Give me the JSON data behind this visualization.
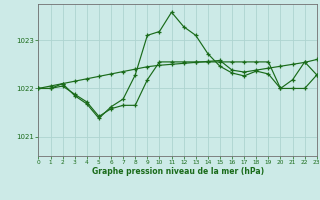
{
  "title": "Graphe pression niveau de la mer (hPa)",
  "bg_color": "#cceae7",
  "grid_color": "#aed4d0",
  "line_color": "#1a6b1a",
  "xlim": [
    0,
    23
  ],
  "ylim": [
    1020.6,
    1023.75
  ],
  "yticks": [
    1021,
    1022,
    1023
  ],
  "xticks": [
    0,
    1,
    2,
    3,
    4,
    5,
    6,
    7,
    8,
    9,
    10,
    11,
    12,
    13,
    14,
    15,
    16,
    17,
    18,
    19,
    20,
    21,
    22,
    23
  ],
  "s1y": [
    1022.0,
    1022.0,
    1022.1,
    1022.15,
    1022.2,
    1022.25,
    1022.3,
    1022.35,
    1022.4,
    1022.45,
    1022.48,
    1022.5,
    1022.52,
    1022.54,
    1022.56,
    1022.58,
    1022.38,
    1022.34,
    1022.38,
    1022.42,
    1022.46,
    1022.5,
    1022.54,
    1022.6
  ],
  "s2y": [
    1022.0,
    1022.05,
    1022.1,
    1021.85,
    1021.68,
    1021.38,
    1021.62,
    1021.78,
    1022.28,
    1023.1,
    1023.18,
    1023.58,
    1023.28,
    1023.1,
    1022.72,
    1022.46,
    1022.32,
    1022.26,
    1022.36,
    1022.3,
    1022.0,
    1022.18,
    1022.55,
    1022.28
  ],
  "s3y": [
    1022.0,
    1022.0,
    1022.05,
    1021.88,
    1021.72,
    1021.42,
    1021.58,
    1021.65,
    1021.65,
    1022.18,
    1022.55,
    1022.55,
    1022.55,
    1022.55,
    1022.55,
    1022.55,
    1022.55,
    1022.55,
    1022.55,
    1022.55,
    1022.0,
    1022.0,
    1022.0,
    1022.28
  ]
}
